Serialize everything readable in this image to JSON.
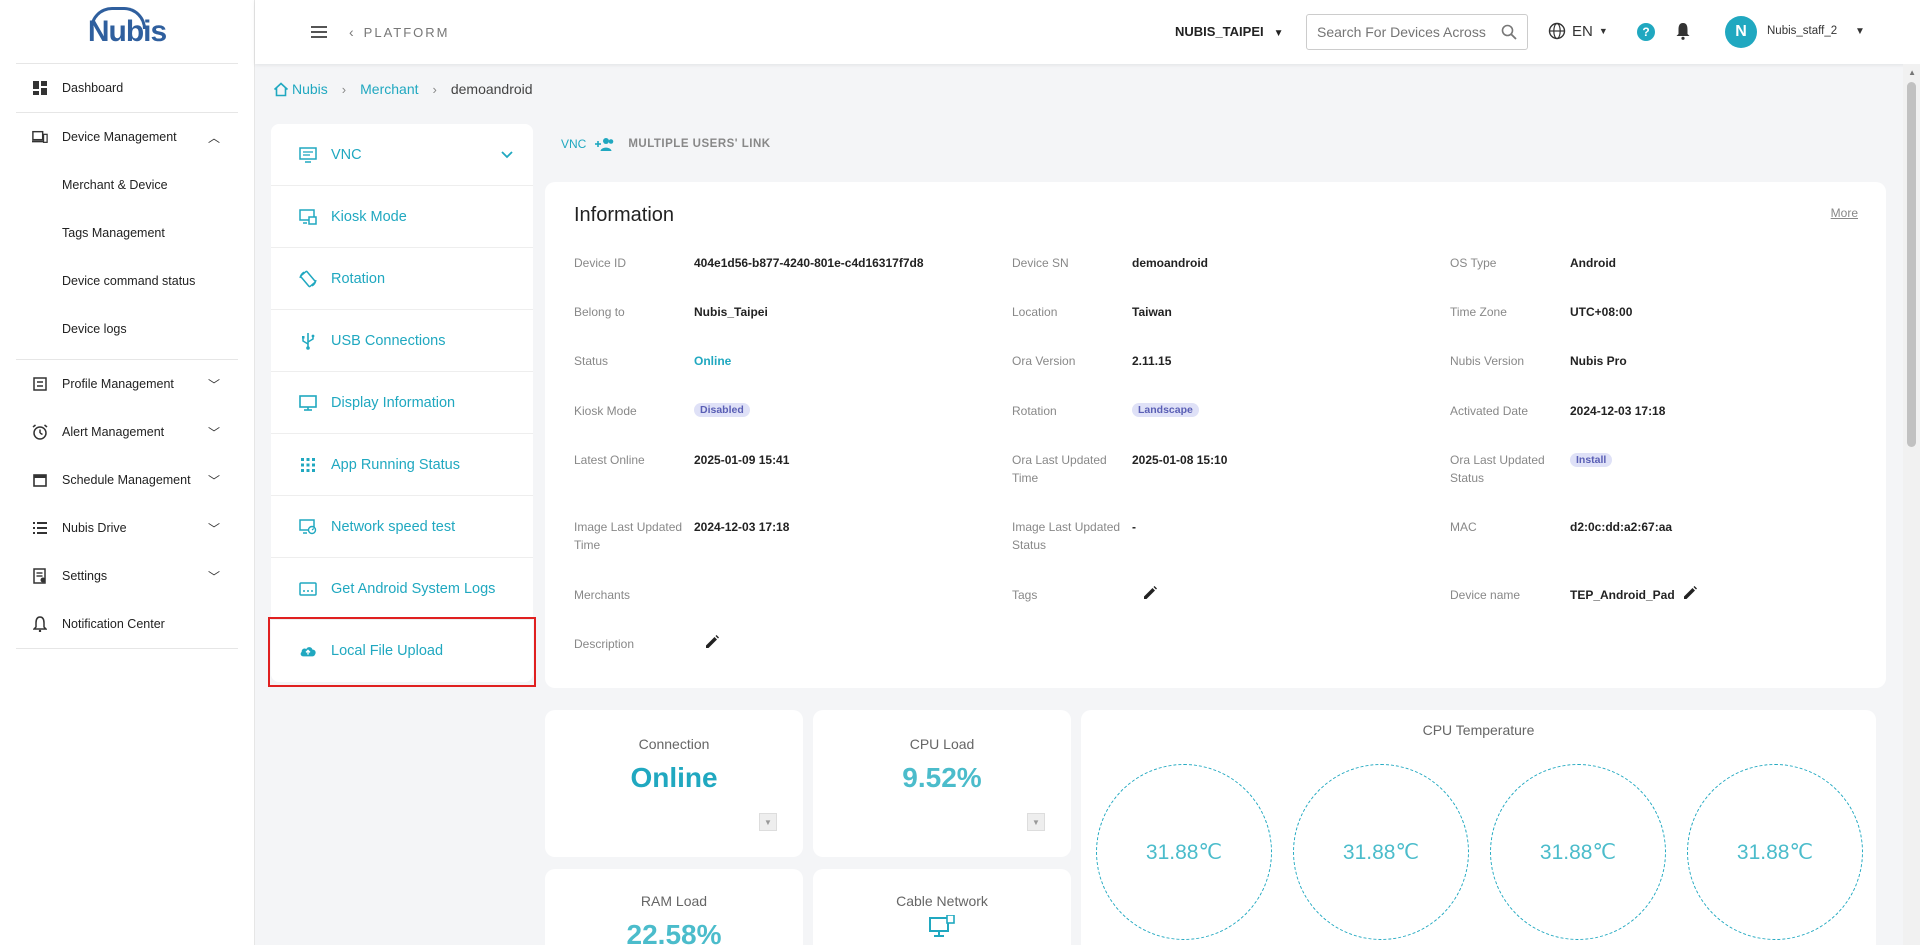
{
  "brand": {
    "logo_text": "Nubis"
  },
  "sidebar": {
    "items": [
      {
        "label": "Dashboard",
        "icon": "dashboard-icon"
      },
      {
        "label": "Device Management",
        "icon": "device-icon",
        "expanded": true
      },
      {
        "label": "Merchant & Device"
      },
      {
        "label": "Tags Management"
      },
      {
        "label": "Device command status"
      },
      {
        "label": "Device logs"
      },
      {
        "label": "Profile Management",
        "icon": "profile-icon"
      },
      {
        "label": "Alert Management",
        "icon": "alarm-icon"
      },
      {
        "label": "Schedule Management",
        "icon": "calendar-icon"
      },
      {
        "label": "Nubis Drive",
        "icon": "list-icon"
      },
      {
        "label": "Settings",
        "icon": "settings-icon"
      },
      {
        "label": "Notification Center",
        "icon": "bell-icon"
      }
    ]
  },
  "topbar": {
    "platform": "PLATFORM",
    "tenant": "NUBIS_TAIPEI",
    "search_placeholder": "Search For Devices Across",
    "language": "EN",
    "help": "?",
    "avatar_initial": "N",
    "username": "Nubis_staff_2"
  },
  "breadcrumb": {
    "home": "Nubis",
    "merchant": "Merchant",
    "current": "demoandroid"
  },
  "tools": [
    {
      "label": "VNC",
      "icon": "vnc-icon"
    },
    {
      "label": "Kiosk Mode",
      "icon": "kiosk-icon"
    },
    {
      "label": "Rotation",
      "icon": "rotation-icon"
    },
    {
      "label": "USB Connections",
      "icon": "usb-icon"
    },
    {
      "label": "Display Information",
      "icon": "display-icon"
    },
    {
      "label": "App Running Status",
      "icon": "apps-grid-icon"
    },
    {
      "label": "Network speed test",
      "icon": "speed-test-icon"
    },
    {
      "label": "Get Android System Logs",
      "icon": "logs-icon"
    },
    {
      "label": "Local File Upload",
      "icon": "cloud-upload-icon"
    }
  ],
  "vnc_link": {
    "vnc": "VNC",
    "multi": "MULTIPLE USERS' LINK"
  },
  "info": {
    "title": "Information",
    "more": "More",
    "device_id_label": "Device ID",
    "device_id": "404e1d56-b877-4240-801e-c4d16317f7d8",
    "device_sn_label": "Device SN",
    "device_sn": "demoandroid",
    "os_type_label": "OS Type",
    "os_type": "Android",
    "belong_label": "Belong to",
    "belong": "Nubis_Taipei",
    "location_label": "Location",
    "location": "Taiwan",
    "timezone_label": "Time Zone",
    "timezone": "UTC+08:00",
    "status_label": "Status",
    "status": "Online",
    "ora_version_label": "Ora Version",
    "ora_version": "2.11.15",
    "nubis_version_label": "Nubis Version",
    "nubis_version": "Nubis Pro",
    "kiosk_label": "Kiosk Mode",
    "kiosk": "Disabled",
    "rotation_label": "Rotation",
    "rotation": "Landscape",
    "activated_label": "Activated Date",
    "activated": "2024-12-03 17:18",
    "latest_online_label": "Latest Online",
    "latest_online": "2025-01-09 15:41",
    "ora_updated_time_label": "Ora Last Updated Time",
    "ora_updated_time": "2025-01-08 15:10",
    "ora_updated_status_label": "Ora Last Updated Status",
    "ora_updated_status": "Install",
    "image_updated_time_label": "Image Last Updated Time",
    "image_updated_time": "2024-12-03 17:18",
    "image_updated_status_label": "Image Last Updated Status",
    "image_updated_status": "-",
    "mac_label": "MAC",
    "mac": "d2:0c:dd:a2:67:aa",
    "merchants_label": "Merchants",
    "tags_label": "Tags",
    "device_name_label": "Device name",
    "device_name": "TEP_Android_Pad",
    "description_label": "Description"
  },
  "stats": {
    "connection_label": "Connection",
    "connection": "Online",
    "cpu_load_label": "CPU Load",
    "cpu_load": "9.52%",
    "ram_load_label": "RAM Load",
    "ram_load": "22.58%",
    "cable_label": "Cable Network",
    "cpu_temp_title": "CPU Temperature",
    "cpu_temps": [
      "31.88℃",
      "31.88℃",
      "31.88℃",
      "31.88℃"
    ]
  },
  "colors": {
    "accent": "#20a8c0",
    "badge_bg": "#dfe1f7",
    "badge_text": "#5a5fb5",
    "highlight": "#e02020"
  }
}
